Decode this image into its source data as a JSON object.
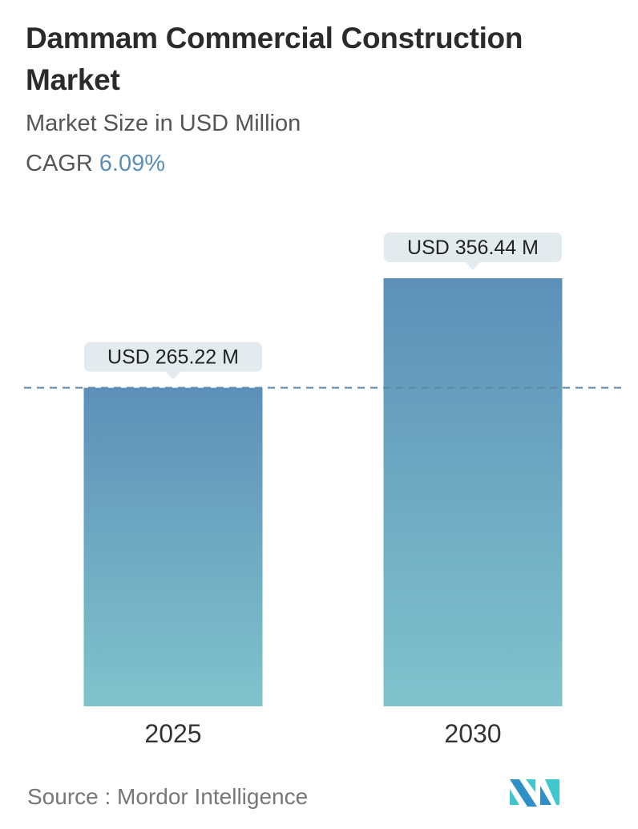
{
  "header": {
    "title": "Dammam Commercial Construction Market",
    "subtitle": "Market Size in USD Million",
    "cagr_label": "CAGR",
    "cagr_value": "6.09%"
  },
  "chart_data": {
    "type": "bar",
    "categories": [
      "2025",
      "2030"
    ],
    "values": [
      265.22,
      356.44
    ],
    "data_labels": [
      "USD 265.22 M",
      "USD 356.44 M"
    ],
    "reference_line": {
      "value": 265.22,
      "style": "dashed"
    },
    "ylim": [
      0,
      356.44
    ],
    "grid": false,
    "colors": {
      "bar_top": "#5d90b8",
      "bar_bottom": "#80c3cc",
      "dash": "#5f88ab",
      "label_bg": "#e3ebef"
    }
  },
  "footer": {
    "source": "Source :  Mordor Intelligence",
    "logo_text": "MI",
    "logo_colors": [
      "#2f8fc7",
      "#3fc6cf"
    ]
  }
}
